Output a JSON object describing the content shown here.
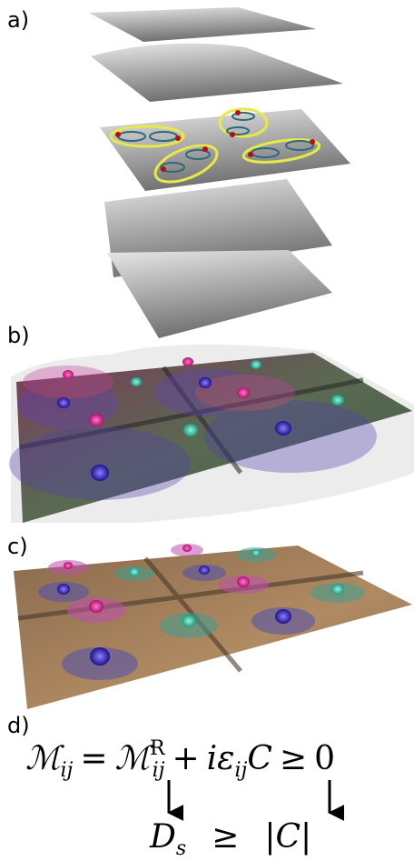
{
  "panels": [
    {
      "label": "a)"
    },
    {
      "label": "b)"
    },
    {
      "label": "c)"
    },
    {
      "label": "d)"
    }
  ],
  "equation": {
    "lhs": "ℳ",
    "lhs_sub": "ij",
    "eq": "=",
    "term1": "ℳ",
    "term1_sup": "R",
    "term1_sub": "ij",
    "plus": "+",
    "term2": "iε",
    "term2_sub": "ij",
    "term2_tail": "C",
    "geq": "≥",
    "zero": "0"
  },
  "inequality": {
    "left": "D",
    "left_sub": "s",
    "geq": "≥",
    "right": "|C|"
  }
}
